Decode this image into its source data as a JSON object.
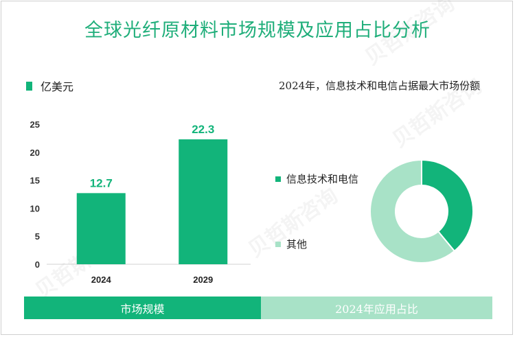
{
  "title": "全球光纤原材料市场规模及应用占比分析",
  "bar_unit": "亿美元",
  "pie_title": "2024年，信息技术和电信占据最大市场份额",
  "bottom": {
    "left_label": "市场规模",
    "right_label": "2024年应用占比"
  },
  "watermark_text": "贝哲斯咨询",
  "colors": {
    "primary": "#12b47a",
    "secondary": "#a8e2c7",
    "title": "#1fae7a"
  },
  "chart_data": [
    {
      "type": "bar",
      "categories": [
        "2024",
        "2029"
      ],
      "values": [
        12.7,
        22.3
      ],
      "data_labels": [
        "12.7",
        "22.3"
      ],
      "ylim": [
        0,
        25
      ],
      "yticks": [
        0,
        5,
        10,
        15,
        20,
        25
      ],
      "ytick_labels": [
        "0",
        "5",
        "10",
        "15",
        "20",
        "25"
      ],
      "grid": false,
      "legend": "top-left"
    },
    {
      "type": "pie",
      "donut": true,
      "categories": [
        "信息技术和电信",
        "其他"
      ],
      "values": [
        39,
        61
      ],
      "legend": "left"
    }
  ]
}
